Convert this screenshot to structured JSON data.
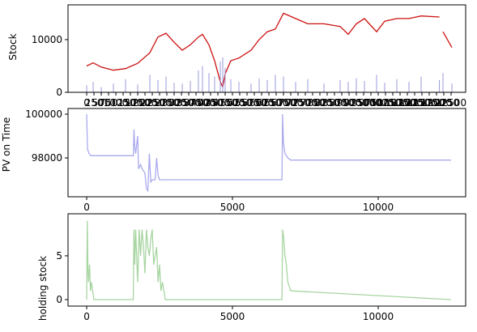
{
  "chart_data": [
    {
      "type": "line",
      "ylabel": "Stock",
      "x": [
        0,
        222,
        500,
        917,
        1333,
        1750,
        2167,
        2444,
        2722,
        3000,
        3278,
        3556,
        3833,
        3972,
        4194,
        4389,
        4583,
        4667,
        4750,
        4944,
        5222,
        5639,
        5917,
        6194,
        6472,
        6750,
        7167,
        7583,
        8139,
        8694,
        8972,
        9250,
        9528,
        9944,
        10222,
        10639,
        11056,
        11472,
        12100,
        12150,
        12222,
        12528
      ],
      "series": [
        {
          "color": "#cc1111",
          "values": [
            5000,
            5600,
            4800,
            4200,
            4500,
            5500,
            7500,
            10500,
            11200,
            9500,
            8000,
            9000,
            10500,
            11000,
            9000,
            6000,
            2000,
            1000,
            3500,
            6000,
            6500,
            8000,
            10000,
            11500,
            12000,
            15000,
            14000,
            13000,
            13000,
            12500,
            11000,
            13000,
            14000,
            11500,
            13500,
            14000,
            14000,
            14500,
            14300,
            null,
            11500,
            8500
          ]
        },
        {
          "color": "#9999dd",
          "axis": "y2",
          "type": "bar",
          "values": [
            8,
            12,
            6,
            10,
            15,
            9,
            20,
            14,
            18,
            11,
            10,
            13,
            25,
            30,
            22,
            18,
            35,
            40,
            28,
            15,
            12,
            10,
            16,
            14,
            20,
            18,
            12,
            15,
            10,
            14,
            12,
            16,
            13,
            20,
            11,
            15,
            12,
            18,
            14,
            null,
            22,
            10
          ]
        }
      ],
      "xlim": [
        -640,
        13000
      ],
      "ylim": [
        0,
        16600
      ],
      "y2lim": [
        0,
        100
      ],
      "yticks": [
        0,
        10000
      ],
      "xticks": [
        0,
        250,
        500,
        750,
        1000,
        1250,
        1500,
        1750,
        2000,
        2250,
        2500,
        2750,
        3000,
        3250,
        3500,
        3750,
        4000,
        4250,
        4500,
        4750,
        5000,
        5250,
        5500,
        5750,
        6000,
        6250,
        6500,
        6750,
        7000,
        7250,
        7500,
        7750,
        8000,
        8250,
        8500,
        8750,
        9000,
        9250,
        9500,
        9750,
        10000,
        10250,
        10500,
        10750,
        11000,
        11250,
        11500,
        11750,
        12000,
        12250,
        12500
      ]
    },
    {
      "type": "line",
      "ylabel": "PV on Time",
      "x": [
        0,
        30,
        80,
        150,
        1600,
        1620,
        1650,
        1680,
        1750,
        1780,
        1850,
        1900,
        2000,
        2050,
        2100,
        2150,
        2200,
        2250,
        2350,
        2400,
        2450,
        2500,
        2600,
        6700,
        6720,
        6750,
        6800,
        6900,
        7000,
        7100,
        12500
      ],
      "series": [
        {
          "color": "#aaaaee",
          "values": [
            100000,
            98400,
            98200,
            98100,
            98100,
            99300,
            98500,
            98200,
            99000,
            97500,
            97700,
            97500,
            97300,
            96600,
            96500,
            98200,
            96900,
            97000,
            97000,
            98000,
            97200,
            97000,
            97000,
            97000,
            100000,
            98700,
            98200,
            98000,
            97900,
            97900,
            97900
          ]
        }
      ],
      "xlim": [
        -640,
        13000
      ],
      "ylim": [
        96222,
        100259
      ],
      "yticks": [
        98000,
        100000
      ],
      "xticks": [
        0,
        5000,
        10000
      ]
    },
    {
      "type": "line",
      "ylabel": "holding stock",
      "x": [
        0,
        20,
        40,
        60,
        100,
        130,
        160,
        250,
        1600,
        1620,
        1650,
        1680,
        1750,
        1800,
        1850,
        1900,
        1950,
        2000,
        2050,
        2100,
        2150,
        2200,
        2250,
        2300,
        2400,
        2450,
        2500,
        2550,
        2600,
        2700,
        6700,
        6720,
        6760,
        6800,
        6850,
        6900,
        7000,
        12500
      ],
      "series": [
        {
          "color": "#a8d5a2",
          "values": [
            0,
            9,
            4,
            2,
            4,
            1,
            2,
            0,
            0,
            8,
            4,
            8,
            2,
            8,
            5,
            8,
            6,
            3,
            8,
            6,
            5,
            7,
            8,
            4,
            6,
            2,
            4,
            1,
            2,
            0,
            0,
            8,
            7,
            5,
            4,
            2,
            1,
            0
          ]
        }
      ],
      "xlim": [
        -640,
        13000
      ],
      "ylim": [
        -0.74,
        9.8
      ],
      "yticks": [
        0,
        5
      ],
      "xticks": [
        0,
        5000,
        10000
      ]
    }
  ]
}
